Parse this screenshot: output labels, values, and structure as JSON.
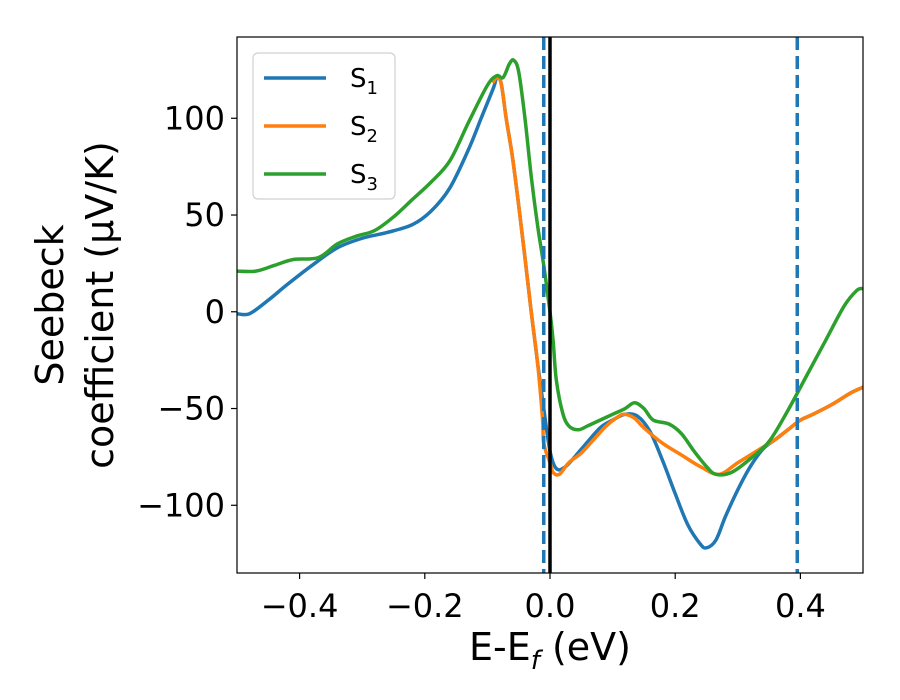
{
  "chart_data": {
    "type": "line",
    "xlabel": {
      "main": "E-E",
      "sub": "f",
      "unit": " (eV)"
    },
    "ylabel": {
      "line1": "Seebeck",
      "line2": "coefficient  (μV/K)"
    },
    "xlim": [
      -0.5,
      0.5
    ],
    "ylim": [
      -135,
      142
    ],
    "x_ticks": [
      -0.4,
      -0.2,
      0.0,
      0.2,
      0.4
    ],
    "x_tick_labels": [
      "−0.4",
      "−0.2",
      "0.0",
      "0.2",
      "0.4"
    ],
    "y_ticks": [
      100,
      50,
      0,
      -50,
      -100
    ],
    "y_tick_labels": [
      "100",
      "50",
      "0",
      "−50",
      "−100"
    ],
    "legend": {
      "placement": "top-left"
    },
    "vlines": [
      {
        "x": -0.01,
        "style": "dashed",
        "color": "#1f77b4"
      },
      {
        "x": 0.0,
        "style": "solid",
        "color": "#000000"
      },
      {
        "x": 0.395,
        "style": "dashed",
        "color": "#1f77b4"
      }
    ],
    "series": [
      {
        "base": "S",
        "sub": "1",
        "color": "#1f77b4",
        "points": [
          [
            -0.5,
            -1
          ],
          [
            -0.48,
            -1
          ],
          [
            -0.45,
            6
          ],
          [
            -0.42,
            14
          ],
          [
            -0.38,
            24
          ],
          [
            -0.34,
            33
          ],
          [
            -0.3,
            38
          ],
          [
            -0.26,
            41
          ],
          [
            -0.22,
            45
          ],
          [
            -0.19,
            52
          ],
          [
            -0.16,
            64
          ],
          [
            -0.13,
            84
          ],
          [
            -0.11,
            100
          ],
          [
            -0.09,
            116
          ],
          [
            -0.085,
            121
          ],
          [
            -0.078,
            118
          ],
          [
            -0.07,
            100
          ],
          [
            -0.06,
            80
          ],
          [
            -0.05,
            55
          ],
          [
            -0.04,
            28
          ],
          [
            -0.03,
            0
          ],
          [
            -0.02,
            -26
          ],
          [
            -0.01,
            -50
          ],
          [
            0.0,
            -72
          ],
          [
            0.01,
            -81
          ],
          [
            0.025,
            -80
          ],
          [
            0.05,
            -71
          ],
          [
            0.08,
            -60
          ],
          [
            0.1,
            -56
          ],
          [
            0.12,
            -53
          ],
          [
            0.14,
            -54
          ],
          [
            0.16,
            -62
          ],
          [
            0.18,
            -77
          ],
          [
            0.2,
            -94
          ],
          [
            0.22,
            -110
          ],
          [
            0.24,
            -120
          ],
          [
            0.25,
            -122
          ],
          [
            0.265,
            -118
          ],
          [
            0.28,
            -106
          ],
          [
            0.3,
            -92
          ],
          [
            0.32,
            -80
          ],
          [
            0.34,
            -71
          ],
          [
            0.36,
            -66
          ],
          [
            0.38,
            -61
          ],
          [
            0.4,
            -56
          ],
          [
            0.42,
            -53
          ],
          [
            0.45,
            -48
          ],
          [
            0.48,
            -42
          ],
          [
            0.5,
            -39
          ]
        ]
      },
      {
        "base": "S",
        "sub": "2",
        "color": "#ff7f0e",
        "points": [
          [
            -0.09,
            119
          ],
          [
            -0.085,
            121
          ],
          [
            -0.078,
            118
          ],
          [
            -0.07,
            100
          ],
          [
            -0.06,
            80
          ],
          [
            -0.05,
            55
          ],
          [
            -0.04,
            28
          ],
          [
            -0.03,
            0
          ],
          [
            -0.02,
            -26
          ],
          [
            -0.012,
            -55
          ],
          [
            -0.01,
            -68
          ],
          [
            0.0,
            -78
          ],
          [
            0.005,
            -83
          ],
          [
            0.015,
            -84
          ],
          [
            0.03,
            -78
          ],
          [
            0.05,
            -73
          ],
          [
            0.07,
            -66
          ],
          [
            0.09,
            -59
          ],
          [
            0.11,
            -54
          ],
          [
            0.12,
            -53
          ],
          [
            0.135,
            -55
          ],
          [
            0.15,
            -60
          ],
          [
            0.18,
            -68
          ],
          [
            0.21,
            -74
          ],
          [
            0.24,
            -80
          ],
          [
            0.27,
            -84
          ],
          [
            0.3,
            -78
          ],
          [
            0.33,
            -72
          ],
          [
            0.36,
            -66
          ],
          [
            0.38,
            -61
          ],
          [
            0.4,
            -56
          ],
          [
            0.42,
            -53
          ],
          [
            0.45,
            -48
          ],
          [
            0.48,
            -42
          ],
          [
            0.5,
            -39
          ]
        ]
      },
      {
        "base": "S",
        "sub": "3",
        "color": "#2ca02c",
        "points": [
          [
            -0.5,
            21
          ],
          [
            -0.47,
            21
          ],
          [
            -0.44,
            24
          ],
          [
            -0.41,
            27
          ],
          [
            -0.37,
            28
          ],
          [
            -0.34,
            35
          ],
          [
            -0.31,
            39
          ],
          [
            -0.28,
            42
          ],
          [
            -0.25,
            49
          ],
          [
            -0.22,
            58
          ],
          [
            -0.19,
            67
          ],
          [
            -0.16,
            78
          ],
          [
            -0.13,
            98
          ],
          [
            -0.1,
            117
          ],
          [
            -0.085,
            122
          ],
          [
            -0.075,
            121
          ],
          [
            -0.065,
            128
          ],
          [
            -0.058,
            130
          ],
          [
            -0.05,
            124
          ],
          [
            -0.04,
            100
          ],
          [
            -0.03,
            70
          ],
          [
            -0.02,
            45
          ],
          [
            -0.01,
            24
          ],
          [
            0.0,
            0
          ],
          [
            0.005,
            -15
          ],
          [
            0.01,
            -35
          ],
          [
            0.02,
            -52
          ],
          [
            0.03,
            -59
          ],
          [
            0.045,
            -61
          ],
          [
            0.06,
            -59
          ],
          [
            0.08,
            -56
          ],
          [
            0.1,
            -53
          ],
          [
            0.12,
            -50
          ],
          [
            0.135,
            -47
          ],
          [
            0.15,
            -50
          ],
          [
            0.165,
            -56
          ],
          [
            0.19,
            -58
          ],
          [
            0.21,
            -63
          ],
          [
            0.23,
            -72
          ],
          [
            0.25,
            -80
          ],
          [
            0.265,
            -84
          ],
          [
            0.29,
            -83
          ],
          [
            0.32,
            -76
          ],
          [
            0.35,
            -67
          ],
          [
            0.38,
            -51
          ],
          [
            0.41,
            -33
          ],
          [
            0.44,
            -15
          ],
          [
            0.47,
            3
          ],
          [
            0.49,
            11
          ],
          [
            0.5,
            12
          ]
        ]
      }
    ]
  }
}
